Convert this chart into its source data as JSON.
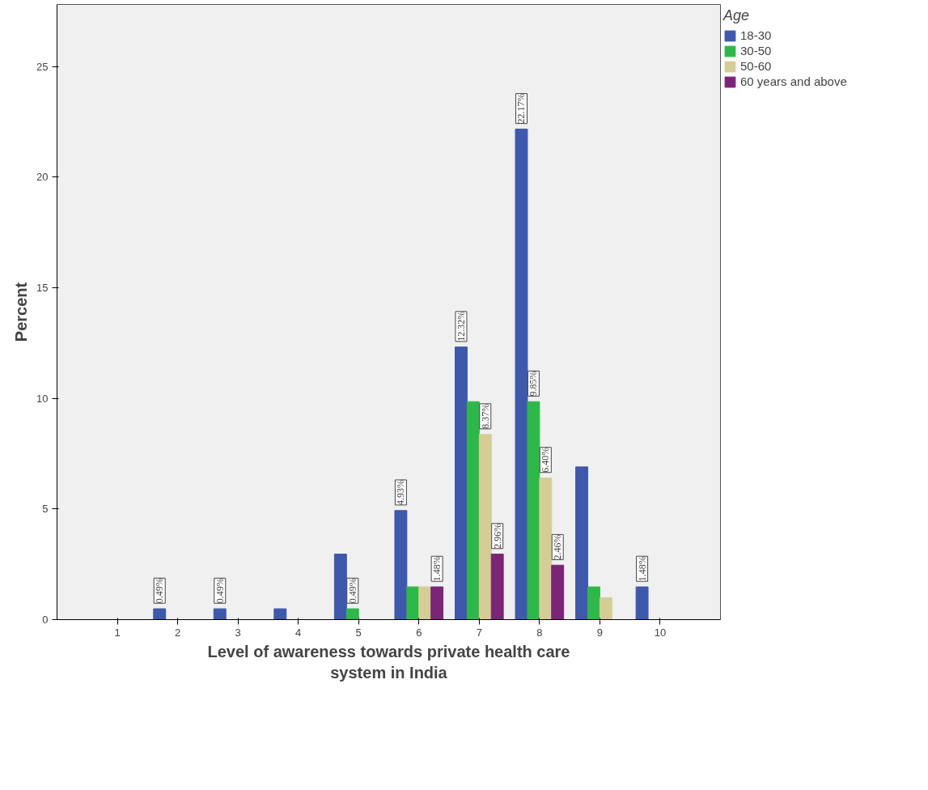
{
  "chart_data": {
    "type": "bar",
    "xlabel": "Level of awareness towards private health care\nsystem in India",
    "ylabel": "Percent",
    "legend_title": "Age",
    "categories": [
      "1",
      "2",
      "3",
      "4",
      "5",
      "6",
      "7",
      "8",
      "9",
      "10"
    ],
    "series": [
      {
        "name": "18-30",
        "color": "#3e58ac",
        "values": [
          0,
          0.49,
          0.49,
          0.49,
          2.96,
          4.93,
          12.32,
          22.17,
          6.9,
          1.48
        ],
        "value_labels": [
          null,
          "0.49%",
          "0.49%",
          null,
          null,
          "4.93%",
          "12.32%",
          "22.17%",
          null,
          "1.48%"
        ]
      },
      {
        "name": "30-50",
        "color": "#2eb84a",
        "values": [
          0,
          0,
          0,
          0,
          0.49,
          1.48,
          9.85,
          9.85,
          1.48,
          0
        ],
        "value_labels": [
          null,
          null,
          null,
          null,
          "0.49%",
          null,
          null,
          "9.85%",
          null,
          null
        ]
      },
      {
        "name": "50-60",
        "color": "#d4ce96",
        "values": [
          0,
          0,
          0,
          0,
          0,
          1.48,
          8.37,
          6.4,
          0.99,
          0
        ],
        "value_labels": [
          null,
          null,
          null,
          null,
          null,
          null,
          "8.37%",
          "6.40%",
          null,
          null
        ]
      },
      {
        "name": "60 years and above",
        "color": "#7b2577",
        "values": [
          0,
          0,
          0,
          0,
          0,
          1.48,
          2.96,
          2.46,
          0,
          0
        ],
        "value_labels": [
          null,
          null,
          null,
          null,
          null,
          "1.48%",
          "2.96%",
          "2.46%",
          null,
          null
        ]
      }
    ],
    "ylim": [
      0,
      27.8
    ],
    "yticks": [
      0,
      5,
      10,
      15,
      20,
      25
    ],
    "grid": false,
    "legend": "top right"
  }
}
